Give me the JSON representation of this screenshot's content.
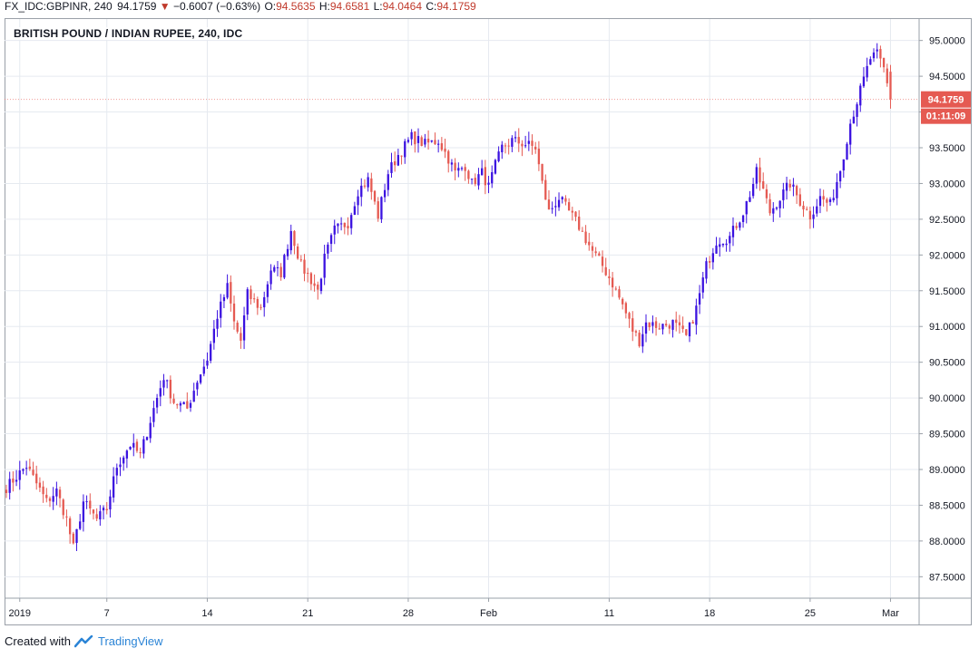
{
  "header": {
    "symbol": "FX_IDC:GBPINR, 240",
    "last": "94.1759",
    "change": "−0.6007 (−0.63%)",
    "o_label": "O:",
    "o_value": "94.5635",
    "h_label": "H:",
    "h_value": "94.6581",
    "l_label": "L:",
    "l_value": "94.0464",
    "c_label": "C:",
    "c_value": "94.1759"
  },
  "footer": {
    "created_with": "Created with",
    "brand": "TradingView"
  },
  "colors": {
    "up": "#3b12e0",
    "down": "#e55a52",
    "grid": "#e6eaf0",
    "axis": "#9aa0a8",
    "badge": "#e55a52"
  },
  "chart_data": {
    "type": "candlestick",
    "title": "BRITISH POUND / INDIAN RUPEE, 240, IDC",
    "ylim": [
      87.2,
      95.3
    ],
    "y_ticks": [
      "87.5000",
      "88.0000",
      "88.5000",
      "89.0000",
      "89.5000",
      "90.0000",
      "90.5000",
      "91.0000",
      "91.5000",
      "92.0000",
      "92.5000",
      "93.0000",
      "93.5000",
      "94.0000",
      "94.5000",
      "95.0000"
    ],
    "x_ticks": [
      {
        "label": "2019",
        "idx": 4
      },
      {
        "label": "7",
        "idx": 30
      },
      {
        "label": "14",
        "idx": 60
      },
      {
        "label": "21",
        "idx": 90
      },
      {
        "label": "28",
        "idx": 120
      },
      {
        "label": "Feb",
        "idx": 144
      },
      {
        "label": "11",
        "idx": 180
      },
      {
        "label": "18",
        "idx": 210
      },
      {
        "label": "25",
        "idx": 240
      },
      {
        "label": "Mar",
        "idx": 264
      }
    ],
    "x_range": [
      0,
      272
    ],
    "last_price_label": "94.1759",
    "countdown_label": "01:11:09",
    "anchors": [
      [
        0,
        88.75
      ],
      [
        6,
        89.05
      ],
      [
        12,
        88.55
      ],
      [
        15,
        88.7
      ],
      [
        18,
        88.3
      ],
      [
        20,
        87.9
      ],
      [
        23,
        88.55
      ],
      [
        27,
        88.3
      ],
      [
        30,
        88.45
      ],
      [
        33,
        89.05
      ],
      [
        37,
        89.35
      ],
      [
        40,
        89.2
      ],
      [
        44,
        89.85
      ],
      [
        47,
        90.3
      ],
      [
        50,
        89.95
      ],
      [
        54,
        89.85
      ],
      [
        57,
        90.25
      ],
      [
        60,
        90.55
      ],
      [
        63,
        91.15
      ],
      [
        66,
        91.55
      ],
      [
        68,
        91.05
      ],
      [
        70,
        90.8
      ],
      [
        72,
        91.45
      ],
      [
        76,
        91.25
      ],
      [
        79,
        91.8
      ],
      [
        82,
        91.75
      ],
      [
        85,
        92.35
      ],
      [
        88,
        91.85
      ],
      [
        91,
        91.65
      ],
      [
        93,
        91.5
      ],
      [
        95,
        91.95
      ],
      [
        98,
        92.35
      ],
      [
        102,
        92.45
      ],
      [
        105,
        92.9
      ],
      [
        108,
        93.05
      ],
      [
        111,
        92.55
      ],
      [
        114,
        93.15
      ],
      [
        117,
        93.4
      ],
      [
        121,
        93.65
      ],
      [
        125,
        93.55
      ],
      [
        129,
        93.6
      ],
      [
        132,
        93.35
      ],
      [
        134,
        93.15
      ],
      [
        137,
        93.25
      ],
      [
        139,
        93.0
      ],
      [
        142,
        93.15
      ],
      [
        144,
        92.95
      ],
      [
        146,
        93.25
      ],
      [
        148,
        93.5
      ],
      [
        151,
        93.6
      ],
      [
        155,
        93.55
      ],
      [
        158,
        93.5
      ],
      [
        160,
        93.0
      ],
      [
        162,
        92.6
      ],
      [
        165,
        92.8
      ],
      [
        168,
        92.6
      ],
      [
        171,
        92.4
      ],
      [
        175,
        92.05
      ],
      [
        178,
        91.85
      ],
      [
        181,
        91.6
      ],
      [
        184,
        91.3
      ],
      [
        187,
        90.95
      ],
      [
        189,
        90.8
      ],
      [
        191,
        91.05
      ],
      [
        195,
        91.0
      ],
      [
        199,
        91.05
      ],
      [
        203,
        90.85
      ],
      [
        206,
        91.25
      ],
      [
        209,
        91.85
      ],
      [
        212,
        92.2
      ],
      [
        216,
        92.25
      ],
      [
        220,
        92.6
      ],
      [
        222,
        92.85
      ],
      [
        224,
        93.15
      ],
      [
        226,
        92.9
      ],
      [
        228,
        92.6
      ],
      [
        231,
        92.8
      ],
      [
        234,
        93.0
      ],
      [
        237,
        92.75
      ],
      [
        240,
        92.55
      ],
      [
        243,
        92.8
      ],
      [
        246,
        92.7
      ],
      [
        249,
        93.2
      ],
      [
        252,
        93.85
      ],
      [
        255,
        94.3
      ],
      [
        258,
        94.75
      ],
      [
        260,
        94.8
      ],
      [
        262,
        94.6
      ],
      [
        264,
        94.18
      ]
    ]
  }
}
